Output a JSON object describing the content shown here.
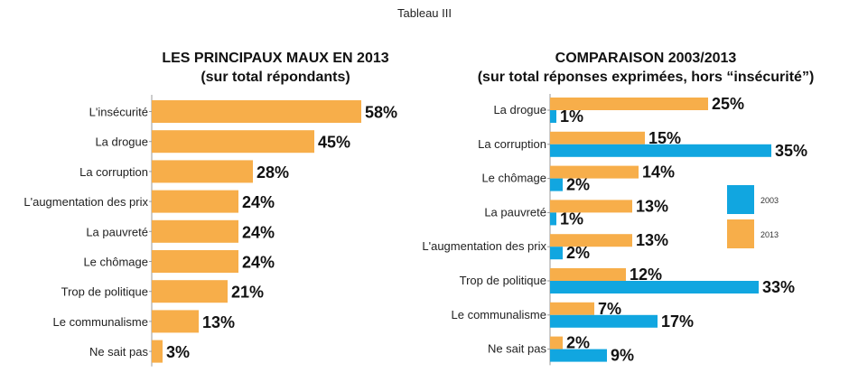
{
  "page_title": "Tableau III",
  "colors": {
    "orange": "#F7AE4A",
    "blue": "#11A6E0",
    "axis": "#999999"
  },
  "chart_data": [
    {
      "type": "bar",
      "orientation": "horizontal",
      "title": "LES PRINCIPAUX MAUX EN 2013",
      "subtitle": "(sur total répondants)",
      "categories": [
        "L'insécurité",
        "La drogue",
        "La corruption",
        "L'augmentation des prix",
        "La pauvreté",
        "Le chômage",
        "Trop de politique",
        "Le communalisme",
        "Ne sait pas"
      ],
      "values": [
        58,
        45,
        28,
        24,
        24,
        24,
        21,
        13,
        3
      ],
      "value_labels": [
        "58%",
        "45%",
        "28%",
        "24%",
        "24%",
        "24%",
        "21%",
        "13%",
        "3%"
      ],
      "xlim": [
        0,
        100
      ],
      "grid": false
    },
    {
      "type": "bar",
      "orientation": "horizontal",
      "title": "COMPARAISON 2003/2013",
      "subtitle": "(sur total réponses exprimées, hors “insécurité”)",
      "categories": [
        "La drogue",
        "La corruption",
        "Le chômage",
        "La pauvreté",
        "L'augmentation des prix",
        "Trop de politique",
        "Le communalisme",
        "Ne sait pas"
      ],
      "series": [
        {
          "name": "2013",
          "values": [
            25,
            15,
            14,
            13,
            13,
            12,
            7,
            2
          ],
          "value_labels": [
            "25%",
            "15%",
            "14%",
            "13%",
            "13%",
            "12%",
            "7%",
            "2%"
          ]
        },
        {
          "name": "2003",
          "values": [
            1,
            35,
            2,
            1,
            2,
            33,
            17,
            9
          ],
          "value_labels": [
            "1%",
            "35%",
            "2%",
            "1%",
            "2%",
            "33%",
            "17%",
            "9%"
          ]
        }
      ],
      "legend": {
        "position": "right",
        "entries": [
          "2003",
          "2013"
        ]
      },
      "xlim": [
        0,
        40
      ],
      "grid": false
    }
  ]
}
